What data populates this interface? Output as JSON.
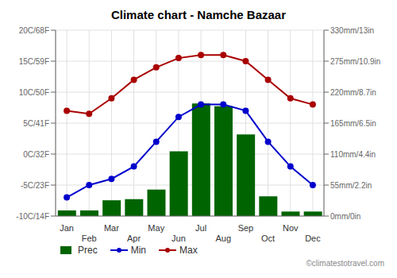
{
  "chart_data": {
    "type": "combo",
    "title": "Climate chart - Namche Bazaar",
    "categories": [
      "Jan",
      "Feb",
      "Mar",
      "Apr",
      "May",
      "Jun",
      "Jul",
      "Aug",
      "Sep",
      "Oct",
      "Nov",
      "Dec"
    ],
    "series": [
      {
        "name": "Prec",
        "type": "bar",
        "axis": "y2",
        "color": "#006400",
        "values": [
          10,
          10,
          28,
          30,
          47,
          115,
          200,
          195,
          145,
          35,
          8,
          8
        ]
      },
      {
        "name": "Min",
        "type": "line",
        "color": "#0000cc",
        "marker": "circle",
        "values": [
          -7.0,
          -5.0,
          -4.0,
          -2.0,
          2.0,
          6.0,
          8.0,
          8.0,
          7.0,
          2.0,
          -2.0,
          -5.0
        ]
      },
      {
        "name": "Max",
        "type": "line",
        "color": "#aa0000",
        "marker": "circle",
        "values": [
          7.0,
          6.5,
          9.0,
          12.0,
          14.0,
          15.5,
          16.0,
          16.0,
          15.0,
          12.0,
          9.0,
          8.0
        ]
      }
    ],
    "ylim": [
      -10,
      20
    ],
    "yticks": [
      {
        "value": -10,
        "label": "-10C/14F"
      },
      {
        "value": -5,
        "label": "-5C/23F"
      },
      {
        "value": 0,
        "label": "0C/32F"
      },
      {
        "value": 5,
        "label": "5C/41F"
      },
      {
        "value": 10,
        "label": "10C/50F"
      },
      {
        "value": 15,
        "label": "15C/59F"
      },
      {
        "value": 20,
        "label": "20C/68F"
      }
    ],
    "y2lim": [
      0,
      330
    ],
    "y2ticks": [
      {
        "value": 0,
        "label": "0mm/0in"
      },
      {
        "value": 55,
        "label": "55mm/2.2in"
      },
      {
        "value": 110,
        "label": "110mm/4.4in"
      },
      {
        "value": 165,
        "label": "165mm/6.5in"
      },
      {
        "value": 220,
        "label": "220mm/8.7in"
      },
      {
        "value": 275,
        "label": "275mm/10.9in"
      },
      {
        "value": 330,
        "label": "330mm/13in"
      }
    ],
    "grid": true,
    "legend": "bottom",
    "annotations": [
      "©climatestotravel.com"
    ]
  }
}
